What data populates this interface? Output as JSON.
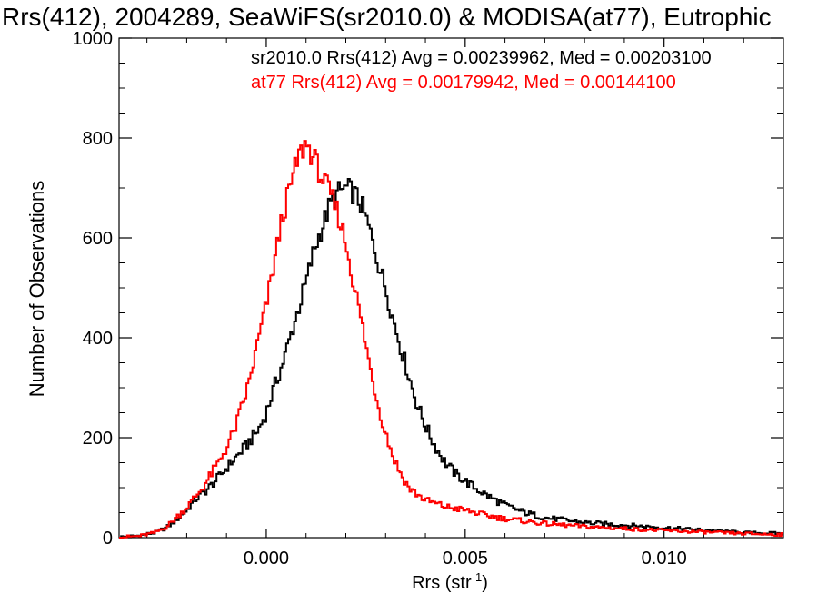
{
  "chart_data": {
    "type": "line",
    "title": "Rrs(412), 2004289, SeaWiFS(sr2010.0) & MODISA(at77), Eutrophic",
    "xlabel": "Rrs (str",
    "xlabel_sup": "-1",
    "xlabel_close": ")",
    "ylabel": "Number of Observations",
    "xlim": [
      -0.0037,
      0.013
    ],
    "ylim": [
      0,
      1000
    ],
    "x_ticks": [
      {
        "value": 0.0,
        "label": "0.000"
      },
      {
        "value": 0.005,
        "label": "0.005"
      },
      {
        "value": 0.01,
        "label": "0.010"
      }
    ],
    "y_ticks": [
      {
        "value": 0,
        "label": "0"
      },
      {
        "value": 200,
        "label": "200"
      },
      {
        "value": 400,
        "label": "400"
      },
      {
        "value": 600,
        "label": "600"
      },
      {
        "value": 800,
        "label": "800"
      },
      {
        "value": 1000,
        "label": "1000"
      }
    ],
    "legend_placement": "top-right",
    "series": [
      {
        "name": "sr2010.0",
        "legend": "sr2010.0 Rrs(412) Avg = 0.00239962, Med = 0.00203100",
        "color": "#000000",
        "points": [
          [
            -0.0037,
            1
          ],
          [
            -0.0032,
            4
          ],
          [
            -0.0028,
            10
          ],
          [
            -0.0025,
            20
          ],
          [
            -0.0022,
            40
          ],
          [
            -0.002,
            55
          ],
          [
            -0.0018,
            75
          ],
          [
            -0.0015,
            95
          ],
          [
            -0.0012,
            120
          ],
          [
            -0.001,
            140
          ],
          [
            -0.0006,
            175
          ],
          [
            -0.0002,
            215
          ],
          [
            0.0,
            250
          ],
          [
            0.0002,
            300
          ],
          [
            0.0004,
            345
          ],
          [
            0.0006,
            400
          ],
          [
            0.0008,
            455
          ],
          [
            0.001,
            510
          ],
          [
            0.0012,
            575
          ],
          [
            0.0014,
            620
          ],
          [
            0.0016,
            665
          ],
          [
            0.0018,
            690
          ],
          [
            0.002,
            700
          ],
          [
            0.0022,
            690
          ],
          [
            0.0024,
            665
          ],
          [
            0.0026,
            615
          ],
          [
            0.0028,
            555
          ],
          [
            0.003,
            500
          ],
          [
            0.0032,
            435
          ],
          [
            0.0034,
            375
          ],
          [
            0.0036,
            320
          ],
          [
            0.0038,
            265
          ],
          [
            0.004,
            225
          ],
          [
            0.0042,
            190
          ],
          [
            0.0045,
            150
          ],
          [
            0.0048,
            125
          ],
          [
            0.0052,
            102
          ],
          [
            0.0056,
            82
          ],
          [
            0.006,
            65
          ],
          [
            0.0065,
            50
          ],
          [
            0.007,
            40
          ],
          [
            0.008,
            30
          ],
          [
            0.009,
            25
          ],
          [
            0.01,
            20
          ],
          [
            0.011,
            15
          ],
          [
            0.012,
            10
          ],
          [
            0.013,
            8
          ]
        ]
      },
      {
        "name": "at77",
        "legend": "at77 Rrs(412) Avg = 0.00179942, Med = 0.00144100",
        "color": "#ff0000",
        "points": [
          [
            -0.0037,
            1
          ],
          [
            -0.0032,
            3
          ],
          [
            -0.0028,
            10
          ],
          [
            -0.0025,
            22
          ],
          [
            -0.0022,
            45
          ],
          [
            -0.002,
            60
          ],
          [
            -0.0018,
            80
          ],
          [
            -0.0016,
            100
          ],
          [
            -0.0014,
            125
          ],
          [
            -0.0012,
            150
          ],
          [
            -0.001,
            180
          ],
          [
            -0.0008,
            215
          ],
          [
            -0.0006,
            265
          ],
          [
            -0.0004,
            320
          ],
          [
            -0.0002,
            395
          ],
          [
            0.0,
            465
          ],
          [
            0.0002,
            550
          ],
          [
            0.0004,
            640
          ],
          [
            0.0006,
            700
          ],
          [
            0.0008,
            760
          ],
          [
            0.001,
            790
          ],
          [
            0.0012,
            760
          ],
          [
            0.0014,
            720
          ],
          [
            0.0016,
            690
          ],
          [
            0.0018,
            650
          ],
          [
            0.002,
            590
          ],
          [
            0.0022,
            510
          ],
          [
            0.0024,
            430
          ],
          [
            0.0026,
            345
          ],
          [
            0.0028,
            270
          ],
          [
            0.003,
            210
          ],
          [
            0.0032,
            160
          ],
          [
            0.0034,
            125
          ],
          [
            0.0036,
            98
          ],
          [
            0.004,
            75
          ],
          [
            0.0045,
            62
          ],
          [
            0.005,
            55
          ],
          [
            0.0055,
            45
          ],
          [
            0.006,
            38
          ],
          [
            0.007,
            28
          ],
          [
            0.008,
            22
          ],
          [
            0.009,
            18
          ],
          [
            0.01,
            14
          ],
          [
            0.011,
            11
          ],
          [
            0.012,
            8
          ],
          [
            0.013,
            6
          ]
        ]
      }
    ]
  }
}
